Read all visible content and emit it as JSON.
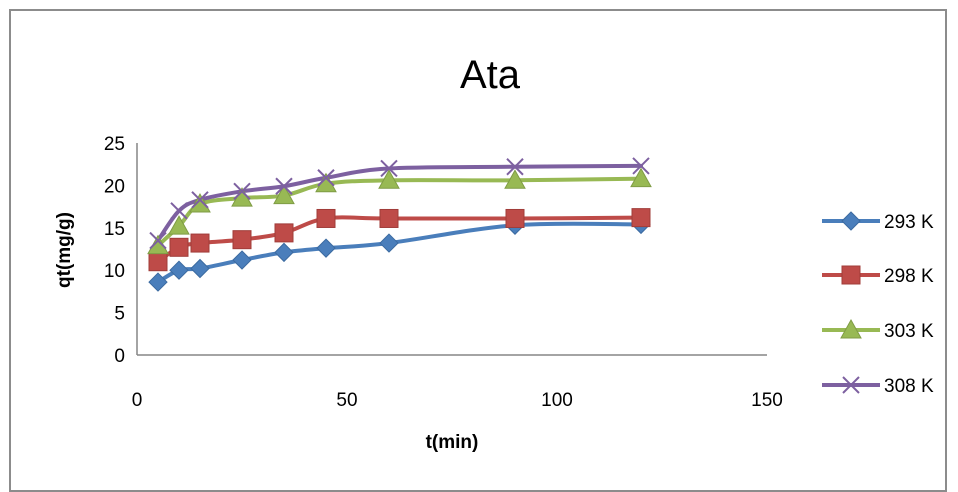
{
  "chart_data": {
    "type": "line",
    "title": "Ata",
    "xlabel": "t(min)",
    "ylabel": "qt(mg/g)",
    "xlim": [
      0,
      150
    ],
    "ylim": [
      0,
      25
    ],
    "x_ticks": [
      0,
      50,
      100,
      150
    ],
    "y_ticks": [
      0,
      5,
      10,
      15,
      20,
      25
    ],
    "grid": false,
    "legend_position": "right",
    "x": [
      5,
      10,
      15,
      25,
      35,
      45,
      60,
      90,
      120
    ],
    "series": [
      {
        "name": "293 K",
        "color": "#4a7ebb",
        "marker": "diamond",
        "values": [
          8.6,
          10.0,
          10.2,
          11.2,
          12.1,
          12.6,
          13.2,
          15.3,
          15.4
        ]
      },
      {
        "name": "298 K",
        "color": "#be4b48",
        "marker": "square",
        "values": [
          11.0,
          12.7,
          13.2,
          13.6,
          14.4,
          16.1,
          16.1,
          16.1,
          16.2
        ]
      },
      {
        "name": "303 K",
        "color": "#98b954",
        "marker": "triangle",
        "values": [
          12.9,
          15.2,
          17.8,
          18.5,
          18.8,
          20.2,
          20.6,
          20.6,
          20.8
        ]
      },
      {
        "name": "308 K",
        "color": "#7d60a0",
        "marker": "cross",
        "values": [
          13.5,
          17.0,
          18.3,
          19.3,
          19.9,
          20.9,
          22.0,
          22.2,
          22.3
        ]
      }
    ]
  }
}
